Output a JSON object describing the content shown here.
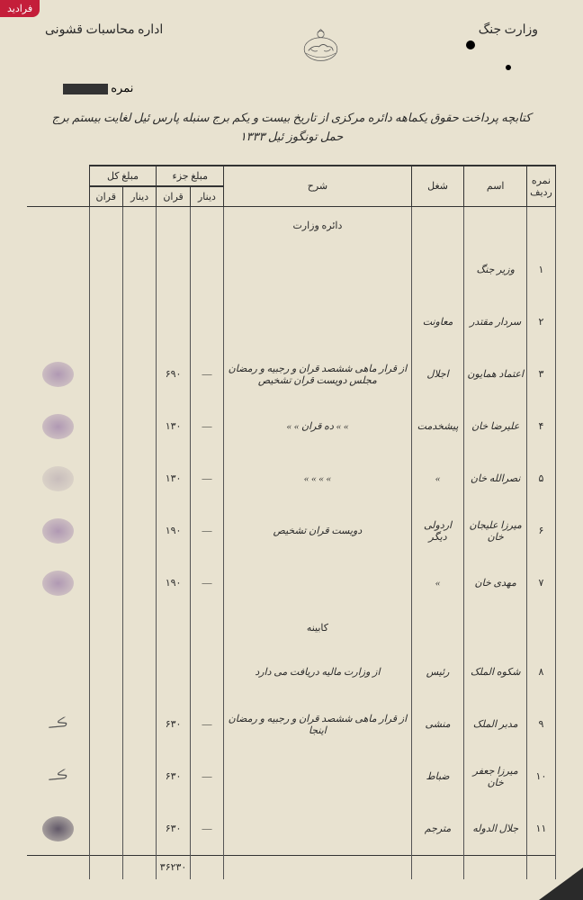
{
  "watermark": "فرادید",
  "header": {
    "right": "وزارت جنگ",
    "left": "اداره محاسبات قشونی",
    "number_label": "نمره"
  },
  "title": "کتابچه پرداخت حقوق یکماهه دائره مرکزی از تاریخ بیست و یکم برج سنبله پارس ئیل لغایت بیستم برج حمل تونگوز ئیل ۱۳۳۳",
  "columns": {
    "row_num": "نمره ردیف",
    "name": "اسم",
    "job": "شغل",
    "desc": "شرح",
    "amount_part": "مبلغ جزء",
    "amount_total": "مبلغ کل",
    "sub1": "دینار",
    "sub2": "قران",
    "sub3": "دینار",
    "sub4": "قران"
  },
  "sections": {
    "ministry": "دائره وزارت",
    "cabinet": "کابینه"
  },
  "rows": [
    {
      "num": "۱",
      "name": "وزیر جنگ",
      "job": "",
      "desc": "",
      "amt_d": "",
      "amt_q": ""
    },
    {
      "num": "۲",
      "name": "سردار مقتدر",
      "job": "معاونت",
      "desc": "",
      "amt_d": "",
      "amt_q": ""
    },
    {
      "num": "۳",
      "name": "اعتماد همایون",
      "job": "اجلال",
      "desc": "از قرار ماهی ششصد قران و رجبیه و رمضان مجلس دویست قران تشخیص",
      "amt_d": "—",
      "amt_q": "۶۹۰"
    },
    {
      "num": "۴",
      "name": "علیرضا خان",
      "job": "پیشخدمت",
      "desc": "» » ده قران » »",
      "amt_d": "—",
      "amt_q": "۱۳۰"
    },
    {
      "num": "۵",
      "name": "نصرالله خان",
      "job": "»",
      "desc": "» » » »",
      "amt_d": "—",
      "amt_q": "۱۳۰"
    },
    {
      "num": "۶",
      "name": "میرزا علیجان خان",
      "job": "اردولی دیگر",
      "desc": "دویست قران تشخیص",
      "amt_d": "—",
      "amt_q": "۱۹۰"
    },
    {
      "num": "۷",
      "name": "مهدی خان",
      "job": "»",
      "desc": "",
      "amt_d": "—",
      "amt_q": "۱۹۰"
    },
    {
      "num": "۸",
      "name": "شکوه الملک",
      "job": "رئیس",
      "desc": "از وزارت مالیه دریافت می دارد",
      "amt_d": "",
      "amt_q": ""
    },
    {
      "num": "۹",
      "name": "مدبر الملک",
      "job": "منشی",
      "desc": "از قرار ماهی ششصد قران و رجبیه و رمضان اینجا",
      "amt_d": "—",
      "amt_q": "۶۳۰"
    },
    {
      "num": "۱۰",
      "name": "میرزا جعفر خان",
      "job": "ضباط",
      "desc": "",
      "amt_d": "—",
      "amt_q": "۶۳۰"
    },
    {
      "num": "۱۱",
      "name": "جلال الدوله",
      "job": "مترجم",
      "desc": "",
      "amt_d": "—",
      "amt_q": "۶۳۰"
    }
  ],
  "total": "۳۶۲۳۰"
}
